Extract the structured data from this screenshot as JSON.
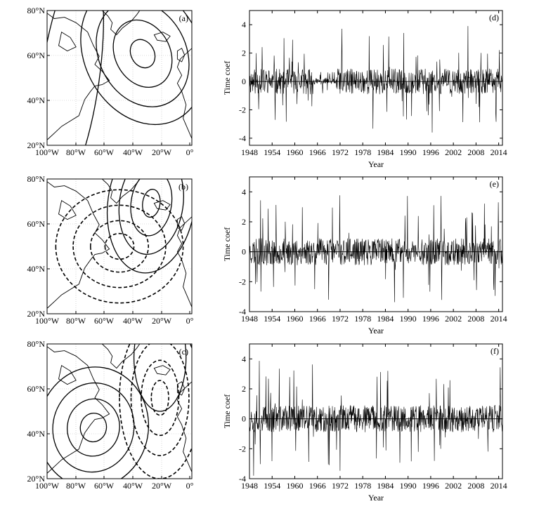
{
  "maps": [
    {
      "panel_label": "(a)",
      "pattern": "a"
    },
    {
      "panel_label": "(b)",
      "pattern": "b"
    },
    {
      "panel_label": "(c)",
      "pattern": "c"
    }
  ],
  "map_axes": {
    "lon_ticks": [
      "100°W",
      "80°W",
      "60°W",
      "40°W",
      "20°W",
      "0°"
    ],
    "lat_ticks": [
      "80°N",
      "60°N",
      "40°N",
      "20°N"
    ]
  },
  "chart_data": [
    {
      "type": "line",
      "panel_label": "(d)",
      "xlabel": "Year",
      "ylabel": "Time coef",
      "ylim": [
        -4.5,
        5
      ],
      "yticks": [
        -4,
        -2,
        0,
        2,
        4
      ],
      "xticks": [
        1948,
        1954,
        1960,
        1966,
        1972,
        1978,
        1984,
        1990,
        1996,
        2002,
        2008,
        2014
      ],
      "xlim": [
        1948,
        2015
      ],
      "series_note_seed": 11
    },
    {
      "type": "line",
      "panel_label": "(e)",
      "xlabel": "Year",
      "ylabel": "Time coef",
      "ylim": [
        -4,
        5
      ],
      "yticks": [
        -4,
        -2,
        0,
        2,
        4
      ],
      "xticks": [
        1948,
        1954,
        1960,
        1966,
        1972,
        1978,
        1984,
        1990,
        1996,
        2002,
        2008,
        2014
      ],
      "xlim": [
        1948,
        2015
      ],
      "series_note_seed": 23
    },
    {
      "type": "line",
      "panel_label": "(f)",
      "xlabel": "Year",
      "ylabel": "Time coef",
      "ylim": [
        -4,
        5
      ],
      "yticks": [
        -4,
        -2,
        0,
        2,
        4
      ],
      "xticks": [
        1948,
        1954,
        1960,
        1966,
        1972,
        1978,
        1984,
        1990,
        1996,
        2002,
        2008,
        2014
      ],
      "xlim": [
        1948,
        2015
      ],
      "series_note_seed": 37
    }
  ]
}
